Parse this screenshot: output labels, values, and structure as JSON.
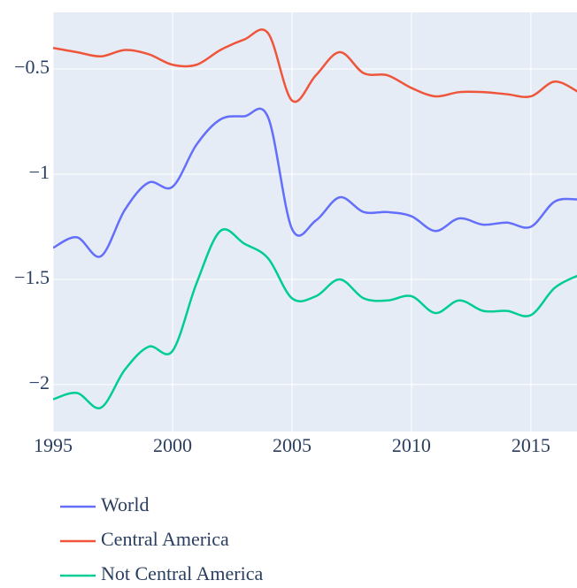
{
  "chart_data": {
    "type": "line",
    "x": [
      1995,
      1996,
      1997,
      1998,
      1999,
      2000,
      2001,
      2002,
      2003,
      2004,
      2005,
      2006,
      2007,
      2008,
      2009,
      2010,
      2011,
      2012,
      2013,
      2014,
      2015,
      2016,
      2017
    ],
    "series": [
      {
        "name": "World",
        "color": "#636efa",
        "values": [
          -1.35,
          -1.3,
          -1.39,
          -1.17,
          -1.04,
          -1.06,
          -0.86,
          -0.74,
          -0.725,
          -0.73,
          -1.26,
          -1.22,
          -1.11,
          -1.18,
          -1.18,
          -1.2,
          -1.27,
          -1.21,
          -1.24,
          -1.23,
          -1.25,
          -1.13,
          -1.12
        ]
      },
      {
        "name": "Central America",
        "color": "#ef553b",
        "values": [
          -0.4,
          -0.42,
          -0.44,
          -0.41,
          -0.43,
          -0.48,
          -0.48,
          -0.41,
          -0.36,
          -0.33,
          -0.65,
          -0.53,
          -0.42,
          -0.52,
          -0.53,
          -0.59,
          -0.63,
          -0.61,
          -0.61,
          -0.62,
          -0.63,
          -0.56,
          -0.61
        ]
      },
      {
        "name": "Not Central America",
        "color": "#00cc96",
        "values": [
          -2.07,
          -2.04,
          -2.11,
          -1.93,
          -1.82,
          -1.84,
          -1.52,
          -1.27,
          -1.33,
          -1.4,
          -1.59,
          -1.58,
          -1.5,
          -1.59,
          -1.6,
          -1.58,
          -1.66,
          -1.6,
          -1.65,
          -1.65,
          -1.67,
          -1.54,
          -1.48
        ]
      }
    ],
    "xlim": [
      1995,
      2016.93
    ],
    "xticks": [
      1995,
      2000,
      2005,
      2010,
      2015
    ],
    "ylim": [
      -2.223,
      -0.231
    ],
    "yticks": [
      {
        "value": -2,
        "label": "−2"
      },
      {
        "value": -1.5,
        "label": "−1.5"
      },
      {
        "value": -1,
        "label": "−1"
      },
      {
        "value": -0.5,
        "label": "−0.5"
      }
    ],
    "grid": true,
    "legend": "bottom"
  }
}
